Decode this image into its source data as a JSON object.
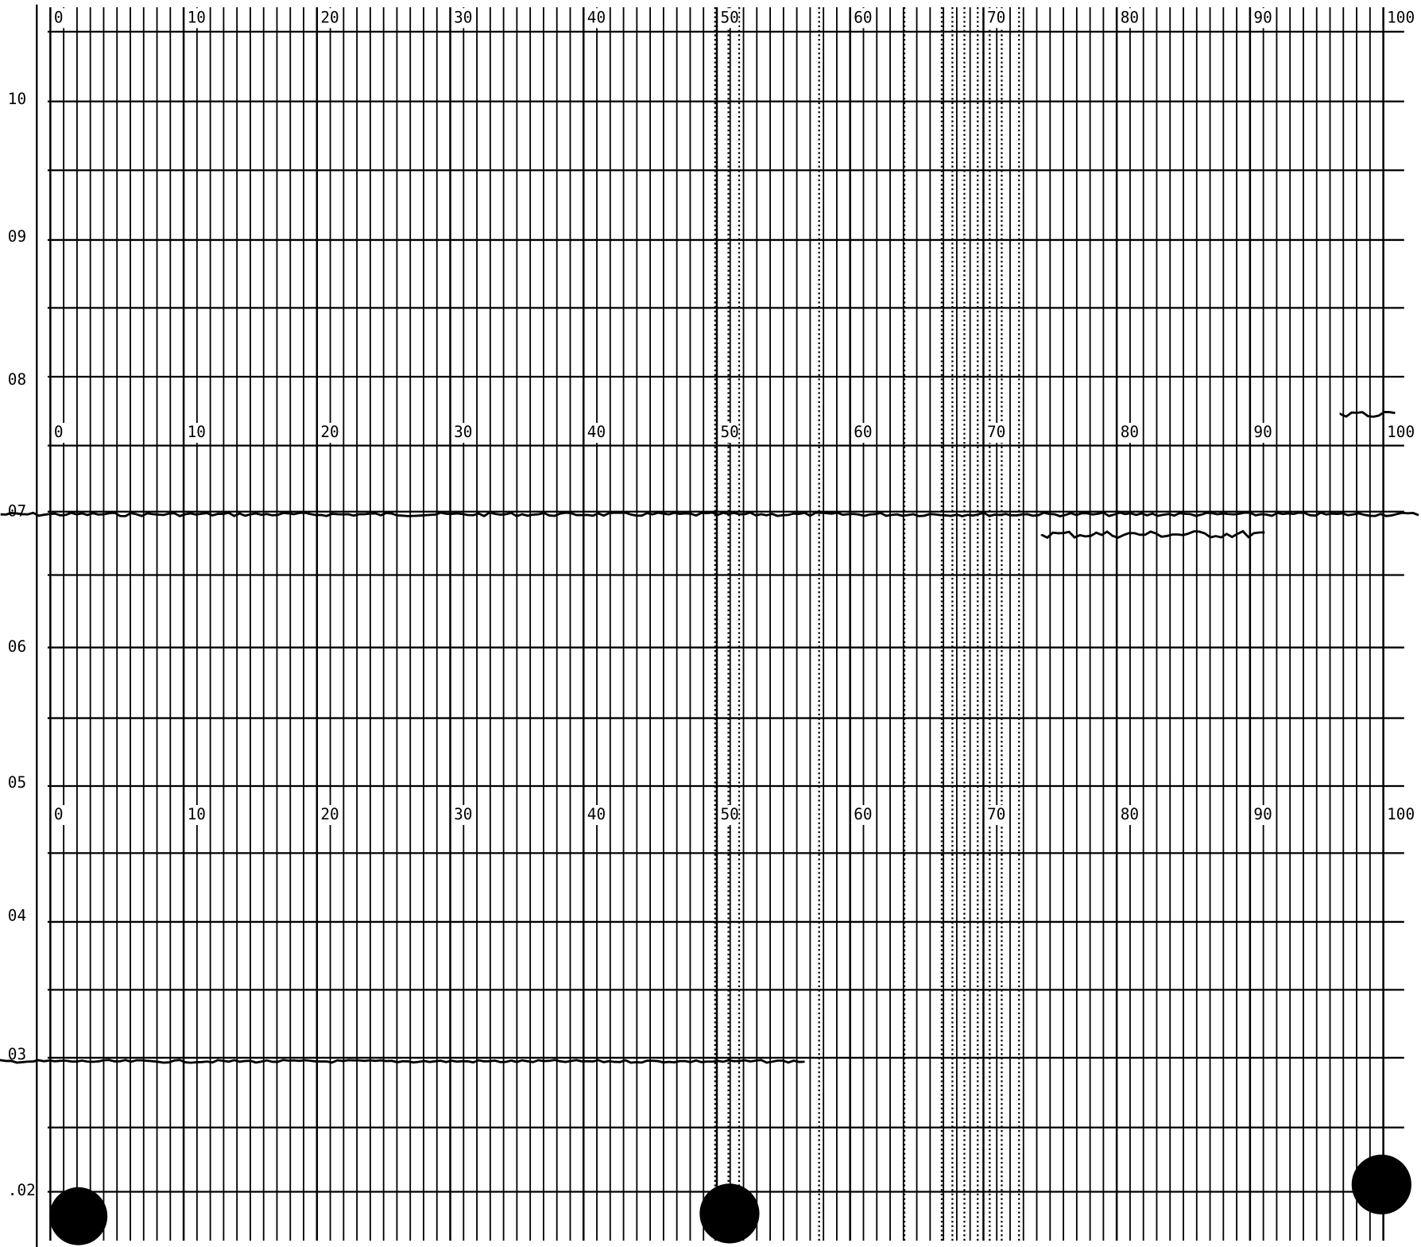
{
  "scales": [
    {
      "labels": [
        "0",
        "10",
        "20",
        "30",
        "40",
        "50",
        "60",
        "70",
        "80",
        "90",
        "100"
      ]
    },
    {
      "labels": [
        "0",
        "10",
        "20",
        "30",
        "40",
        "50",
        "60",
        "70",
        "80",
        "90",
        "100"
      ]
    },
    {
      "labels": [
        "0",
        "10",
        "20",
        "30",
        "40",
        "50",
        "60",
        "70",
        "80",
        "90",
        "100"
      ]
    }
  ],
  "left_labels": [
    "10",
    "09",
    "08",
    "07",
    "06",
    "05",
    "04",
    "03",
    ".02"
  ]
}
